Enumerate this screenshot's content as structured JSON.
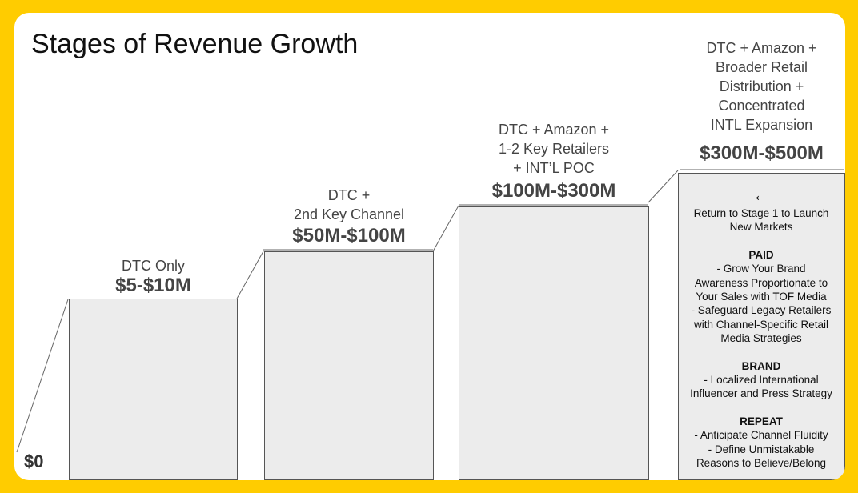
{
  "title": "Stages of Revenue Growth",
  "start_value": "$0",
  "stages": [
    {
      "label": [
        "DTC Only"
      ],
      "value": "$5-$10M"
    },
    {
      "label": [
        "DTC +",
        "2nd Key Channel"
      ],
      "value": "$50M-$100M"
    },
    {
      "label": [
        "DTC + Amazon +",
        "1-2 Key Retailers",
        "+ INT’L POC"
      ],
      "value": "$100M-$300M"
    },
    {
      "label": [
        "DTC + Amazon +",
        "Broader Retail",
        "Distribution +",
        "Concentrated",
        "INTL Expansion"
      ],
      "value": "$300M-$500M"
    }
  ],
  "panel": {
    "arrow": "←",
    "intro": [
      "Return to Stage 1 to Launch",
      "New Markets"
    ],
    "sections": [
      {
        "heading": "PAID",
        "lines": [
          "- Grow Your Brand",
          "Awareness Proportionate to",
          "Your Sales with TOF Media",
          "- Safeguard Legacy Retailers",
          "with Channel-Specific Retail",
          "Media Strategies"
        ]
      },
      {
        "heading": "BRAND",
        "lines": [
          "- Localized International",
          "Influencer and Press Strategy"
        ]
      },
      {
        "heading": "REPEAT",
        "lines": [
          "- Anticipate Channel Fluidity",
          "- Define Unmistakable",
          "Reasons to Believe/Belong"
        ]
      }
    ]
  }
}
